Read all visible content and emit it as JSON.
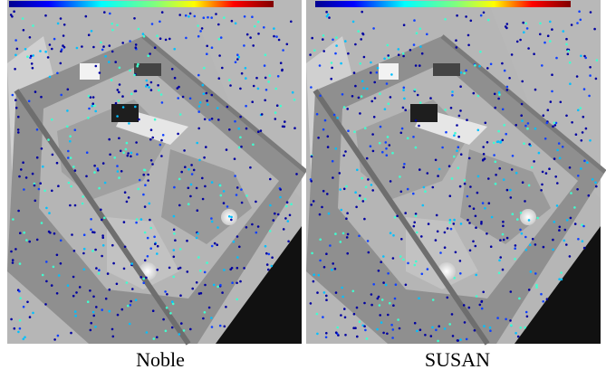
{
  "panels": [
    {
      "caption": "Noble"
    },
    {
      "caption": "SUSAN"
    }
  ]
}
